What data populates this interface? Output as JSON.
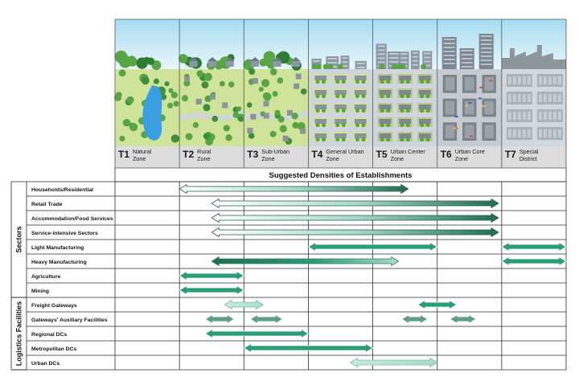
{
  "transects": [
    {
      "code": "T1",
      "name": "Natural Zone",
      "lines": [
        "Natural",
        "Zone"
      ]
    },
    {
      "code": "T2",
      "name": "Rural Zone",
      "lines": [
        "Rural",
        "Zone"
      ]
    },
    {
      "code": "T3",
      "name": "Sub-Urban Zone",
      "lines": [
        "Sub-Urban",
        "Zone"
      ]
    },
    {
      "code": "T4",
      "name": "General Urban Zone",
      "lines": [
        "General Urban",
        "Zone"
      ]
    },
    {
      "code": "T5",
      "name": "Urban Center Zone",
      "lines": [
        "Urban Center",
        "Zone"
      ]
    },
    {
      "code": "T6",
      "name": "Urban Core Zone",
      "lines": [
        "Urban Core",
        "Zone"
      ]
    },
    {
      "code": "T7",
      "name": "Special District",
      "lines": [
        "Special",
        "District"
      ]
    }
  ],
  "header": {
    "title": "Suggested Densities of Establishments"
  },
  "groups": [
    {
      "label": "Sectors",
      "rows": [
        0,
        7
      ]
    },
    {
      "label": "Logistics Facilities",
      "rows": [
        8,
        12
      ]
    }
  ],
  "rows": [
    {
      "label": "Households/Residential",
      "ranges": [
        {
          "from": 1.0,
          "to": 4.55,
          "style": "fade-right"
        }
      ]
    },
    {
      "label": "Retail Trade",
      "ranges": [
        {
          "from": 1.5,
          "to": 5.95,
          "style": "fade-right"
        }
      ]
    },
    {
      "label": "Accommodation/Food Services",
      "ranges": [
        {
          "from": 1.5,
          "to": 5.95,
          "style": "fade-right"
        }
      ]
    },
    {
      "label": "Service-intensive Sectors",
      "ranges": [
        {
          "from": 1.5,
          "to": 5.95,
          "style": "fade-right"
        }
      ]
    },
    {
      "label": "Light Manufacturing",
      "ranges": [
        {
          "from": 3.0,
          "to": 5.0,
          "style": "solid"
        },
        {
          "from": 6.0,
          "to": 7.0,
          "style": "solid"
        }
      ]
    },
    {
      "label": "Heavy Manufacturing",
      "ranges": [
        {
          "from": 1.5,
          "to": 4.4,
          "style": "fade-left"
        },
        {
          "from": 6.0,
          "to": 7.0,
          "style": "solid"
        }
      ]
    },
    {
      "label": "Agriculture",
      "ranges": [
        {
          "from": 1.0,
          "to": 2.0,
          "style": "solid"
        }
      ]
    },
    {
      "label": "Mining",
      "ranges": [
        {
          "from": 1.0,
          "to": 2.0,
          "style": "solid"
        }
      ]
    },
    {
      "label": "Freight Gateways",
      "ranges": [
        {
          "from": 1.7,
          "to": 2.3,
          "style": "pale"
        },
        {
          "from": 4.7,
          "to": 5.3,
          "style": "solid"
        }
      ]
    },
    {
      "label": "Gateways' Auxiliary Facilities",
      "ranges": [
        {
          "from": 1.4,
          "to": 1.85,
          "style": "muted"
        },
        {
          "from": 2.1,
          "to": 2.6,
          "style": "muted"
        },
        {
          "from": 4.45,
          "to": 4.85,
          "style": "muted"
        },
        {
          "from": 5.2,
          "to": 5.6,
          "style": "muted"
        }
      ]
    },
    {
      "label": "Regional DCs",
      "ranges": [
        {
          "from": 1.4,
          "to": 3.0,
          "style": "solid"
        }
      ]
    },
    {
      "label": "Metropolitan DCs",
      "ranges": [
        {
          "from": 2.0,
          "to": 4.0,
          "style": "solid"
        }
      ]
    },
    {
      "label": "Urban DCs",
      "ranges": [
        {
          "from": 3.65,
          "to": 5.0,
          "style": "pale"
        }
      ]
    }
  ],
  "colors": {
    "dark": "#1f6b55",
    "mid": "#2a9d74",
    "bright": "#1faa7e",
    "pale": "#a8dcc8",
    "muted": "#5e9e86",
    "grid": "#2b2b2b",
    "sky": "#bfe6f5",
    "ground": "#cfe39a",
    "tree": "#58a545",
    "road": "#cfd5da",
    "building": "#8d939a",
    "water": "#3a9fe0",
    "zone_label_bg": "#dcdcdc"
  }
}
